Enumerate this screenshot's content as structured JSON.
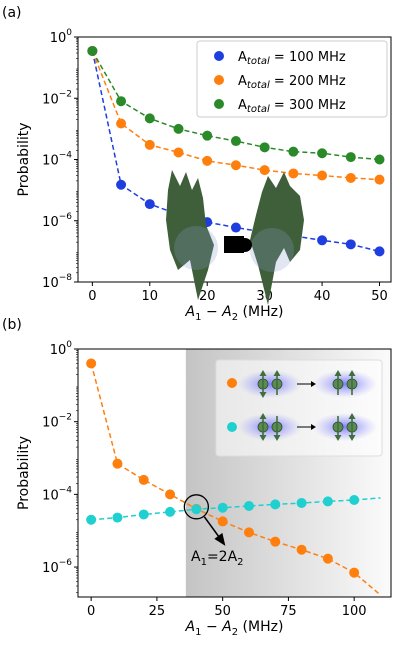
{
  "chart_data": [
    {
      "type": "scatter",
      "panel_label": "(a)",
      "xlabel": "A_1 − A_2 (MHz)",
      "xlabel_parts": [
        "A",
        "1",
        " − ",
        "A",
        "2",
        " (MHz)"
      ],
      "ylabel": "Probability",
      "x_ticks": [
        0,
        10,
        20,
        30,
        40,
        50
      ],
      "y_ticks": [
        "10^0",
        "10^-2",
        "10^-4",
        "10^-6",
        "10^-8"
      ],
      "y_scale": "log",
      "xlim": [
        -2.5,
        52
      ],
      "ylim": [
        1e-08,
        1
      ],
      "legend_position": "top-right",
      "series": [
        {
          "name": "A_total = 100 MHz",
          "legend_parts": [
            "A",
            "total",
            " = 100 MHz"
          ],
          "color": "#1f3ee0",
          "x": [
            0,
            5,
            10,
            15,
            20,
            25,
            30,
            35,
            40,
            45,
            50
          ],
          "y": [
            0.35,
            1.5e-05,
            3.5e-06,
            1.6e-06,
            9e-07,
            6e-07,
            4.2e-07,
            3.2e-07,
            2.3e-07,
            1.7e-07,
            1e-07
          ]
        },
        {
          "name": "A_total = 200 MHz",
          "legend_parts": [
            "A",
            "total",
            " = 200 MHz"
          ],
          "color": "#ff7f0e",
          "x": [
            0,
            5,
            10,
            15,
            20,
            25,
            30,
            35,
            40,
            45,
            50
          ],
          "y": [
            0.35,
            0.0015,
            0.0003,
            0.00017,
            9e-05,
            6.5e-05,
            4.5e-05,
            3.5e-05,
            3e-05,
            2.5e-05,
            2.2e-05
          ]
        },
        {
          "name": "A_total = 300 MHz",
          "legend_parts": [
            "A",
            "total",
            " = 300 MHz"
          ],
          "color": "#2a8a2a",
          "x": [
            0,
            5,
            10,
            15,
            20,
            25,
            30,
            35,
            40,
            45,
            50
          ],
          "y": [
            0.35,
            0.008,
            0.0022,
            0.001,
            0.0006,
            0.0004,
            0.00025,
            0.00018,
            0.00016,
            0.00012,
            0.0001
          ]
        }
      ]
    },
    {
      "type": "scatter",
      "panel_label": "(b)",
      "xlabel": "A_1 − A_2 (MHz)",
      "xlabel_parts": [
        "A",
        "1",
        " − ",
        "A",
        "2",
        " (MHz)"
      ],
      "ylabel": "Probability",
      "x_ticks": [
        0,
        25,
        50,
        75,
        100
      ],
      "y_ticks": [
        "10^0",
        "10^-2",
        "10^-4",
        "10^-6"
      ],
      "y_scale": "log",
      "xlim": [
        -5,
        114
      ],
      "ylim": [
        1.5e-07,
        1
      ],
      "shaded_region_from_x": 36,
      "annotation": {
        "text": "A_1=2A_2",
        "parts": [
          "A",
          "1",
          "=2A",
          "2"
        ],
        "point_x": 40,
        "point_y": 4e-05
      },
      "inset_description": "spin diagrams",
      "series": [
        {
          "name": "orange",
          "color": "#ff7f0e",
          "x": [
            0,
            10,
            20,
            30,
            40,
            50,
            60,
            70,
            80,
            90,
            100
          ],
          "y": [
            0.4,
            0.0007,
            0.00025,
            0.0001,
            4e-05,
            1.8e-05,
            9e-06,
            5e-06,
            3e-06,
            1.7e-06,
            7e-07
          ]
        },
        {
          "name": "cyan",
          "color": "#20d0d0",
          "x": [
            0,
            10,
            20,
            30,
            40,
            50,
            60,
            70,
            80,
            90,
            100
          ],
          "y": [
            2e-05,
            2.3e-05,
            2.8e-05,
            3.3e-05,
            3.9e-05,
            4.3e-05,
            4.8e-05,
            5.3e-05,
            5.8e-05,
            6.4e-05,
            7e-05
          ]
        }
      ]
    }
  ]
}
